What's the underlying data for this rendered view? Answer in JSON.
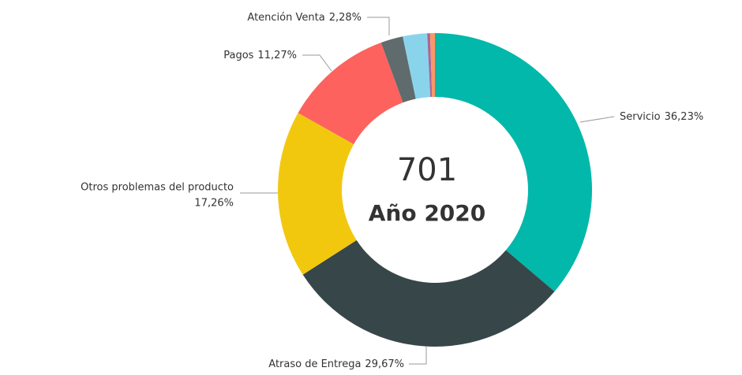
{
  "chart_data": {
    "type": "donut",
    "categories": [
      "Servicio",
      "Atraso de Entrega",
      "Otros problemas del producto",
      "Pagos",
      "Atención Venta",
      null,
      null,
      null
    ],
    "values": [
      36.23,
      29.67,
      17.26,
      11.27,
      2.28,
      2.5,
      0.3,
      0.49
    ],
    "value_labels": [
      "36,23%",
      "29,67%",
      "17,26%",
      "11,27%",
      "2,28%",
      null,
      null,
      null
    ],
    "colors": [
      "#01b8aa",
      "#374649",
      "#f2c80f",
      "#fd625e",
      "#5f6b6d",
      "#8ad4eb",
      "#a66999",
      "#fe9666"
    ],
    "annotations": [
      "701",
      "Año 2020"
    ]
  }
}
